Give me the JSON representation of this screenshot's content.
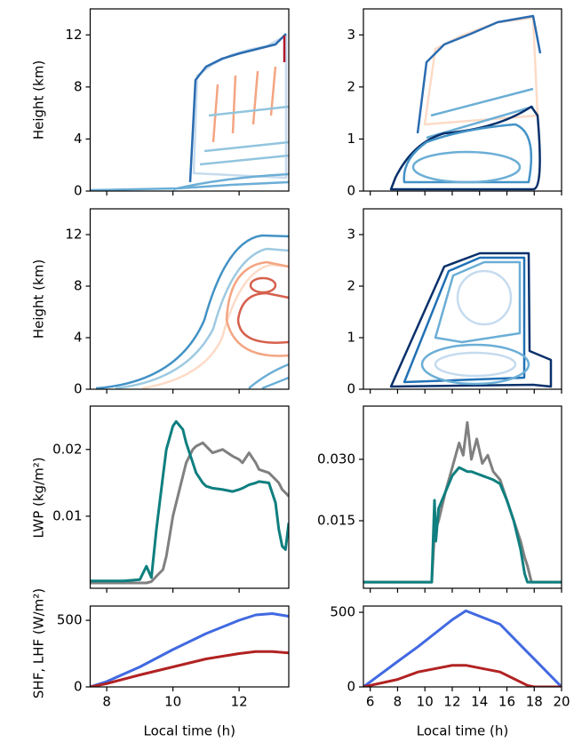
{
  "chart_data": [
    {
      "type": "contour",
      "xlim": [
        7.5,
        13.5
      ],
      "xticks": [
        8,
        10,
        12
      ],
      "xticklabels": false,
      "ylim": [
        0,
        14
      ],
      "yticks": [
        0,
        4,
        8,
        12
      ],
      "ylabel": "Height  (km)"
    },
    {
      "type": "contour",
      "xlim": [
        5.5,
        20
      ],
      "xticks": [
        6,
        8,
        10,
        12,
        14,
        16,
        18,
        20
      ],
      "xticklabels": false,
      "ylim": [
        0,
        3.5
      ],
      "yticks": [
        0,
        1,
        2,
        3
      ]
    },
    {
      "type": "contour",
      "xlim": [
        7.5,
        13.5
      ],
      "xticks": [
        8,
        10,
        12
      ],
      "xticklabels": false,
      "ylim": [
        0,
        14
      ],
      "yticks": [
        0,
        4,
        8,
        12
      ],
      "ylabel": "Height  (km)"
    },
    {
      "type": "contour",
      "xlim": [
        5.5,
        20
      ],
      "xticks": [
        6,
        8,
        10,
        12,
        14,
        16,
        18,
        20
      ],
      "xticklabels": false,
      "ylim": [
        0,
        3.5
      ],
      "yticks": [
        0,
        1,
        2,
        3
      ]
    },
    {
      "type": "line",
      "xlim": [
        7.5,
        13.5
      ],
      "xticks": [
        8,
        10,
        12
      ],
      "xticklabels": false,
      "ylim": [
        -0.0008,
        0.0265
      ],
      "yticks": [
        0.01,
        0.02
      ],
      "ylabel": "LWP (kg/m²)",
      "x": [
        7.5,
        8.5,
        9.0,
        9.2,
        9.35,
        9.5,
        9.7,
        9.8,
        10.0,
        10.1,
        10.3,
        10.4,
        10.6,
        10.7,
        10.9,
        11.0,
        11.2,
        11.5,
        11.8,
        12.0,
        12.1,
        12.3,
        12.5,
        12.6,
        12.9,
        13.1,
        13.2,
        13.3,
        13.4,
        13.5
      ],
      "series": [
        {
          "color": "#808080",
          "values": [
            0,
            0,
            0,
            0,
            0.0002,
            0.001,
            0.002,
            0.004,
            0.01,
            0.012,
            0.016,
            0.018,
            0.02,
            0.0205,
            0.021,
            0.0205,
            0.0195,
            0.02,
            0.019,
            0.0185,
            0.018,
            0.0195,
            0.018,
            0.017,
            0.0165,
            0.0155,
            0.015,
            0.014,
            0.0135,
            0.013
          ]
        },
        {
          "color": "#0f7f7f",
          "values": [
            0.0003,
            0.0003,
            0.0005,
            0.0025,
            0.0008,
            0.008,
            0.016,
            0.02,
            0.0235,
            0.0242,
            0.023,
            0.021,
            0.018,
            0.0165,
            0.015,
            0.0145,
            0.0142,
            0.014,
            0.0137,
            0.014,
            0.0142,
            0.0147,
            0.015,
            0.0152,
            0.015,
            0.012,
            0.008,
            0.0055,
            0.005,
            0.009
          ]
        }
      ]
    },
    {
      "type": "line",
      "xlim": [
        5.5,
        20
      ],
      "xticks": [
        6,
        8,
        10,
        12,
        14,
        16,
        18,
        20
      ],
      "xticklabels": false,
      "ylim": [
        -0.0015,
        0.043
      ],
      "yticks": [
        0.015,
        {
          "value": 0.03,
          "label": "0.030"
        }
      ],
      "x": [
        5.5,
        10.5,
        10.7,
        10.8,
        11,
        11.5,
        12,
        12.5,
        12.8,
        13.1,
        13.4,
        13.8,
        14.2,
        14.6,
        15,
        15.5,
        16,
        16.5,
        17,
        17.3,
        17.5,
        17.8,
        20
      ],
      "series": [
        {
          "color": "#808080",
          "values": [
            0,
            0,
            0.012,
            0.013,
            0.015,
            0.022,
            0.028,
            0.034,
            0.031,
            0.039,
            0.03,
            0.035,
            0.029,
            0.031,
            0.027,
            0.025,
            0.02,
            0.015,
            0.01,
            0.006,
            0.004,
            0,
            0
          ]
        },
        {
          "color": "#0f7f7f",
          "values": [
            0,
            0,
            0.02,
            0.01,
            0.018,
            0.022,
            0.026,
            0.028,
            0.0275,
            0.027,
            0.027,
            0.0265,
            0.026,
            0.0255,
            0.025,
            0.024,
            0.02,
            0.015,
            0.008,
            0.002,
            0,
            0,
            0
          ]
        }
      ]
    },
    {
      "type": "line",
      "xlim": [
        7.5,
        13.5
      ],
      "xticks": [
        8,
        10,
        12
      ],
      "xticklabels": true,
      "ylim": [
        0,
        607
      ],
      "yticks": [
        0,
        500
      ],
      "ylabel": "SHF, LHF (W/m²)",
      "xlabel": "Local time (h)",
      "x": [
        7.5,
        8,
        9,
        10,
        11,
        12,
        12.5,
        13,
        13.5
      ],
      "series": [
        {
          "color": "#4169e1",
          "values": [
            0,
            40,
            150,
            280,
            400,
            500,
            540,
            550,
            530
          ]
        },
        {
          "color": "#b22222",
          "values": [
            0,
            25,
            90,
            150,
            210,
            250,
            265,
            265,
            255
          ]
        }
      ]
    },
    {
      "type": "line",
      "xlim": [
        5.5,
        20
      ],
      "xticks": [
        6,
        8,
        10,
        12,
        14,
        16,
        18,
        20
      ],
      "xticklabels": true,
      "ylim": [
        0,
        542
      ],
      "yticks": [
        0,
        500
      ],
      "xlabel": "Local time (h)",
      "x": [
        5.5,
        8,
        9.5,
        12,
        13,
        15.5,
        17.5,
        18,
        20
      ],
      "series": [
        {
          "color": "#4169e1",
          "values": [
            0,
            170,
            270,
            450,
            510,
            420,
            233,
            187,
            0
          ]
        },
        {
          "color": "#b22222",
          "values": [
            0,
            50,
            100,
            145,
            145,
            100,
            10,
            0,
            0
          ]
        }
      ]
    }
  ]
}
